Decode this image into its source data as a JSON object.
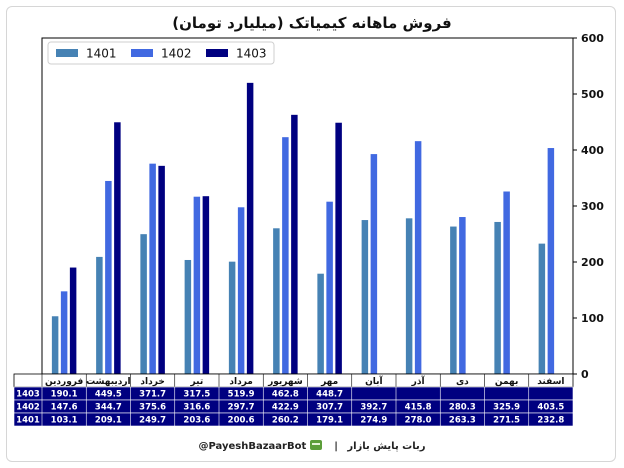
{
  "chart_data": {
    "type": "bar",
    "title": "فروش ماهانه کیمیاتک (میلیارد تومان)",
    "categories": [
      "فروردین",
      "اردیبهشت",
      "خرداد",
      "تیر",
      "مرداد",
      "شهریور",
      "مهر",
      "آبان",
      "آذر",
      "دی",
      "بهمن",
      "اسفند"
    ],
    "series": [
      {
        "name": "1401",
        "color": "#4682b4",
        "values": [
          103.1,
          209.1,
          249.7,
          203.6,
          200.6,
          260.2,
          179.1,
          274.9,
          278.0,
          263.3,
          271.5,
          232.8
        ]
      },
      {
        "name": "1402",
        "color": "#4169e1",
        "values": [
          147.6,
          344.7,
          375.6,
          316.6,
          297.7,
          422.9,
          307.7,
          392.7,
          415.8,
          280.3,
          325.9,
          403.5
        ]
      },
      {
        "name": "1403",
        "color": "#000080",
        "values": [
          190.1,
          449.5,
          371.7,
          317.5,
          519.9,
          462.8,
          448.7,
          null,
          null,
          null,
          null,
          null
        ]
      }
    ],
    "table_rows": [
      {
        "label": "1403",
        "cells": [
          "190.1",
          "449.5",
          "371.7",
          "317.5",
          "519.9",
          "462.8",
          "448.7",
          "",
          "",
          "",
          "",
          ""
        ]
      },
      {
        "label": "1402",
        "cells": [
          "147.6",
          "344.7",
          "375.6",
          "316.6",
          "297.7",
          "422.9",
          "307.7",
          "392.7",
          "415.8",
          "280.3",
          "325.9",
          "403.5"
        ]
      },
      {
        "label": "1401",
        "cells": [
          "103.1",
          "209.1",
          "249.7",
          "203.6",
          "200.6",
          "260.2",
          "179.1",
          "274.9",
          "278.0",
          "263.3",
          "271.5",
          "232.8"
        ]
      }
    ],
    "ylim": [
      0,
      600
    ],
    "yticks": [
      0,
      100,
      200,
      300,
      400,
      500,
      600
    ],
    "y_axis_side": "right",
    "grid": false,
    "legend_position": "top-left",
    "table_colors": {
      "header_bg": "#ffffff",
      "row_bg": "#000080"
    }
  },
  "footer": {
    "handle": "@PayeshBazaarBot",
    "separator": "|",
    "bot_name": "ربات پایش بازار"
  }
}
